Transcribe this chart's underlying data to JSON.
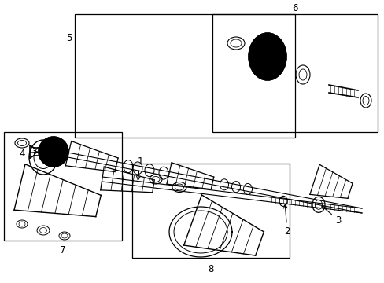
{
  "bg_color": "#ffffff",
  "fig_width": 4.89,
  "fig_height": 3.6,
  "dpi": 100
}
